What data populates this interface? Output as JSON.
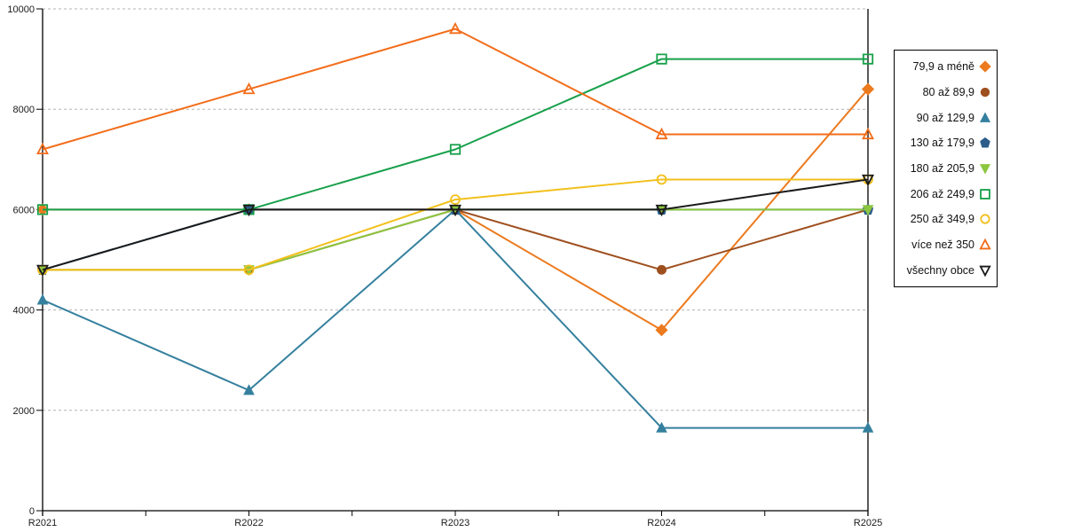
{
  "chart_data": {
    "type": "line",
    "title": "",
    "xlabel": "",
    "ylabel": "",
    "categories": [
      "R2021",
      "R2022",
      "R2023",
      "R2024",
      "R2025"
    ],
    "series": [
      {
        "name": "79,9 a méně",
        "marker": "diamond",
        "fill": "filled",
        "color": "#ec7a1e",
        "values": [
          6000,
          6000,
          6000,
          3600,
          8400
        ]
      },
      {
        "name": "80 až 89,9",
        "marker": "circle",
        "fill": "filled",
        "color": "#9e4f1e",
        "values": [
          4800,
          4800,
          6000,
          4800,
          6000
        ]
      },
      {
        "name": "90 až 129,9",
        "marker": "triangle-up",
        "fill": "filled",
        "color": "#35809e",
        "values": [
          4200,
          2400,
          6000,
          1650,
          1650
        ]
      },
      {
        "name": "130 až 179,9",
        "marker": "pentagon",
        "fill": "filled",
        "color": "#2b5c8a",
        "values": [
          4800,
          6000,
          6000,
          6000,
          6000
        ]
      },
      {
        "name": "180 až 205,9",
        "marker": "triangle-down",
        "fill": "filled",
        "color": "#8dc63f",
        "values": [
          4800,
          4800,
          6000,
          6000,
          6000
        ]
      },
      {
        "name": "206 až 249,9",
        "marker": "square",
        "fill": "open",
        "color": "#18a04b",
        "values": [
          6000,
          6000,
          7200,
          9000,
          9000
        ]
      },
      {
        "name": "250 až 349,9",
        "marker": "circle",
        "fill": "open",
        "color": "#f2c01c",
        "values": [
          4800,
          4800,
          6200,
          6600,
          6600
        ]
      },
      {
        "name": "více než 350",
        "marker": "triangle-up",
        "fill": "open",
        "color": "#f26d1a",
        "values": [
          7200,
          8400,
          9600,
          7500,
          7500
        ]
      },
      {
        "name": "všechny obce",
        "marker": "triangle-down",
        "fill": "open",
        "color": "#1a1a1a",
        "values": [
          4800,
          6000,
          6000,
          6000,
          6600
        ]
      }
    ],
    "ylim": [
      0,
      10000
    ],
    "y_ticks": [
      0,
      2000,
      4000,
      6000,
      8000,
      10000
    ],
    "grid": "dashed horizontal",
    "gridline_color": "#b4b4b4",
    "legend_position": "right"
  }
}
